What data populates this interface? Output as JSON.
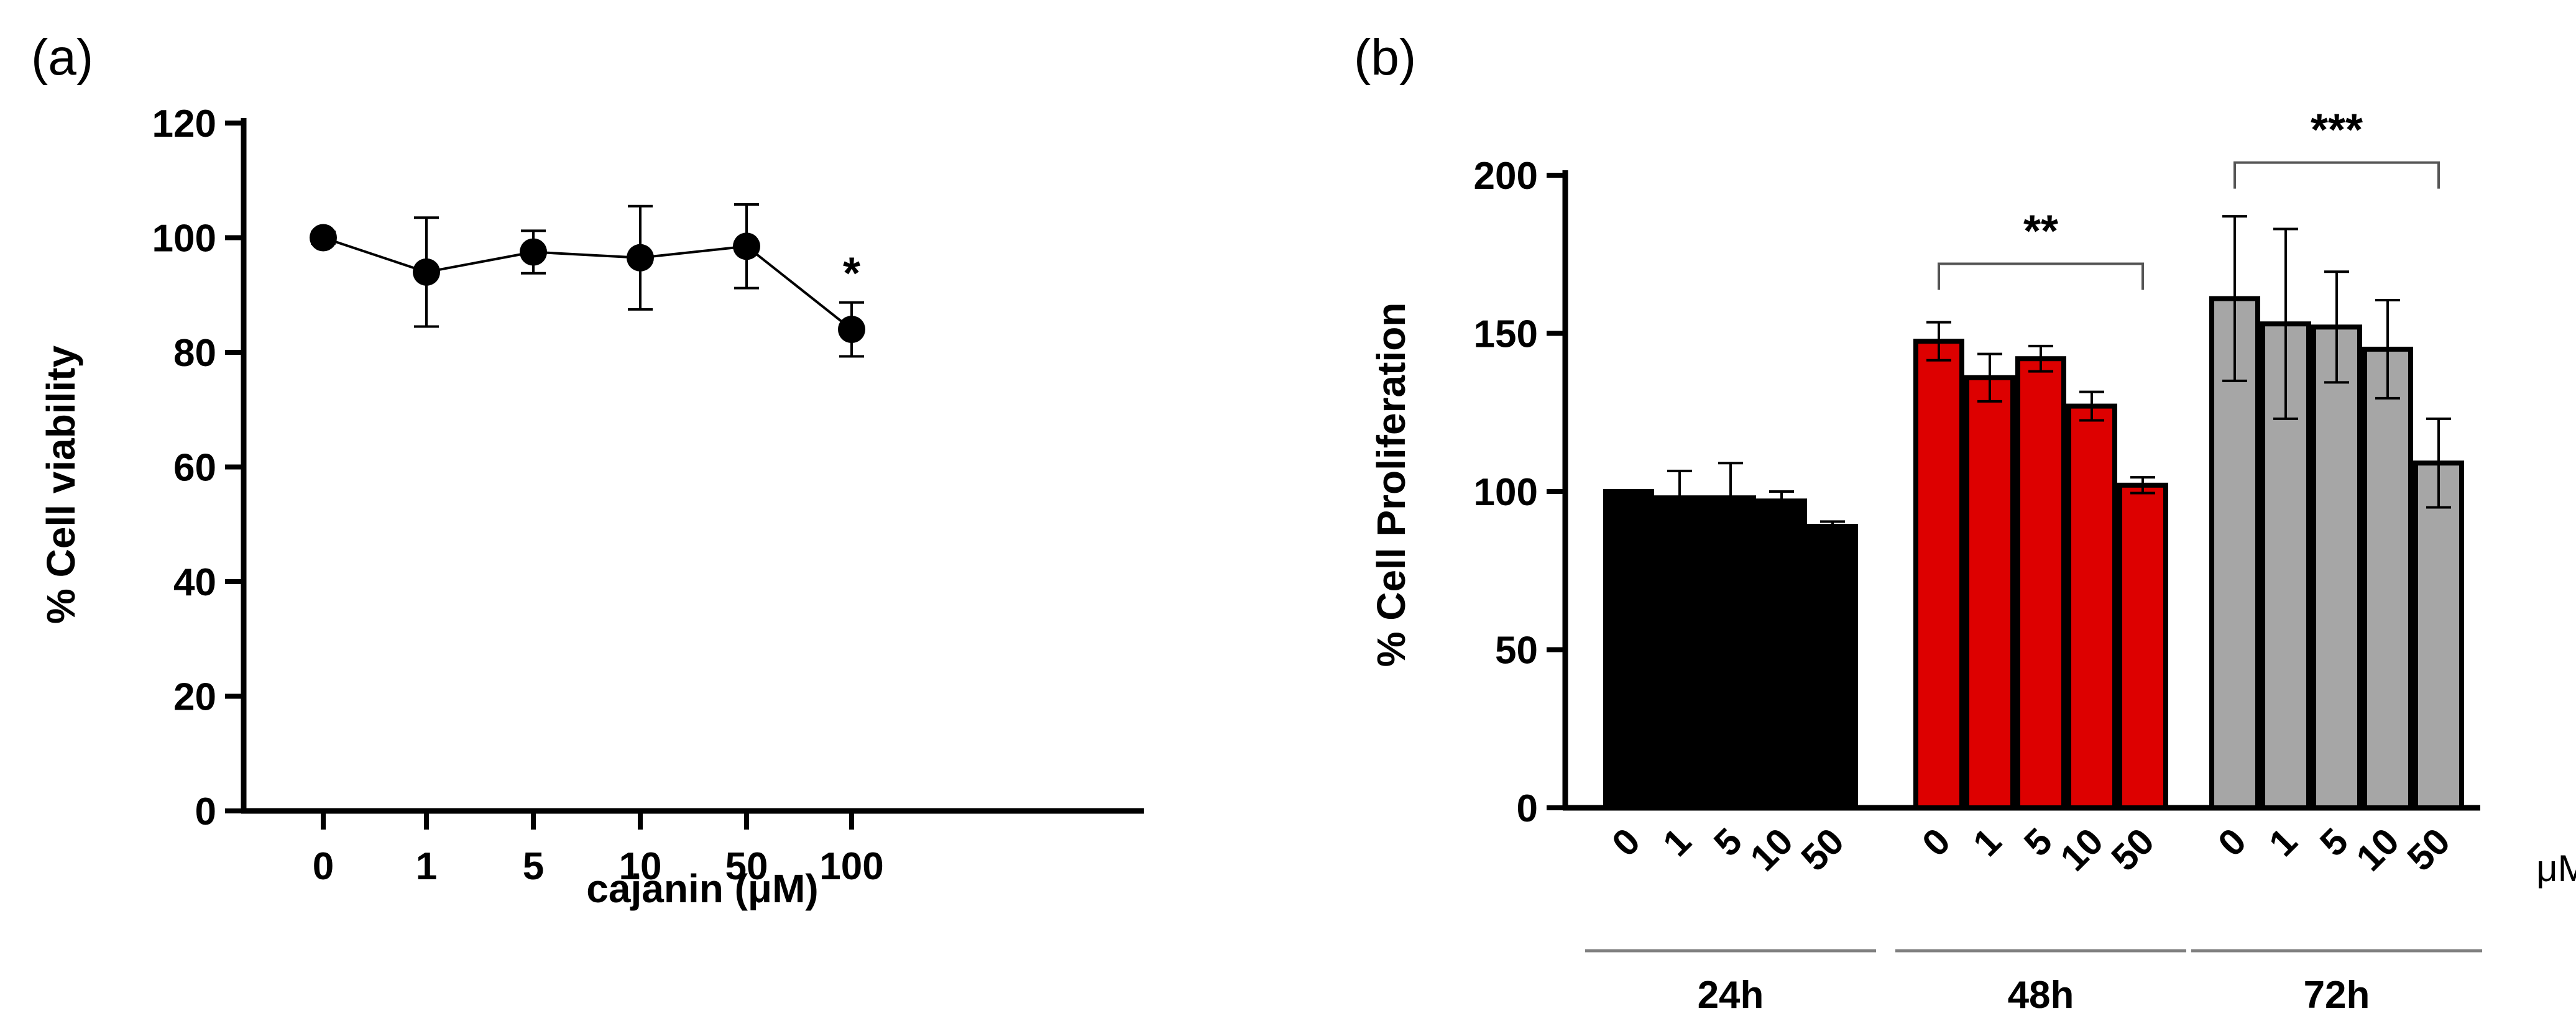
{
  "chart_data": [
    {
      "panel_label": "(a)",
      "type": "line",
      "title": "",
      "xlabel": "cajanin (μM)",
      "ylabel": "% Cell viability",
      "categories": [
        "0",
        "1",
        "5",
        "10",
        "50",
        "100"
      ],
      "series": [
        {
          "name": "viability",
          "values": [
            100,
            94,
            97.5,
            96.5,
            98.5,
            84
          ],
          "errors": [
            1,
            9.5,
            3.7,
            9,
            7.3,
            4.7
          ],
          "annotations": [
            "",
            "",
            "",
            "",
            "",
            "*"
          ]
        }
      ],
      "ylim": [
        0,
        120
      ],
      "yticks": [
        "0",
        "20",
        "40",
        "60",
        "80",
        "100",
        "120"
      ],
      "grid": false,
      "color": "#000000"
    },
    {
      "panel_label": "(b)",
      "type": "bar",
      "title": "",
      "xlabel": "",
      "ylabel": "% Cell Proliferation",
      "unit_label": "μM",
      "ylim": [
        0,
        200
      ],
      "yticks": [
        "0",
        "50",
        "100",
        "150",
        "200"
      ],
      "grid": false,
      "groups": [
        {
          "name": "24h",
          "color": "#000000",
          "categories": [
            "0",
            "1",
            "5",
            "10",
            "50"
          ],
          "values": [
            100,
            98,
            98,
            97,
            89
          ],
          "errors": [
            0,
            8.5,
            11,
            3,
            1.5
          ]
        },
        {
          "name": "48h",
          "color": "#dd0000",
          "categories": [
            "0",
            "1",
            "5",
            "10",
            "50"
          ],
          "values": [
            147.5,
            136,
            142,
            127,
            102
          ],
          "errors": [
            6,
            7.5,
            4,
            4.5,
            2.5
          ]
        },
        {
          "name": "72h",
          "color": "#a6a6a6",
          "categories": [
            "0",
            "1",
            "5",
            "10",
            "50"
          ],
          "values": [
            161,
            153,
            152,
            145,
            109
          ],
          "errors": [
            26,
            30,
            17.5,
            15.5,
            14
          ]
        }
      ],
      "significance": [
        {
          "group": "48h",
          "from": "0",
          "to": "50",
          "label": "**",
          "y": 172
        },
        {
          "group": "72h",
          "from": "0",
          "to": "50",
          "label": "***",
          "y": 204
        }
      ]
    }
  ]
}
